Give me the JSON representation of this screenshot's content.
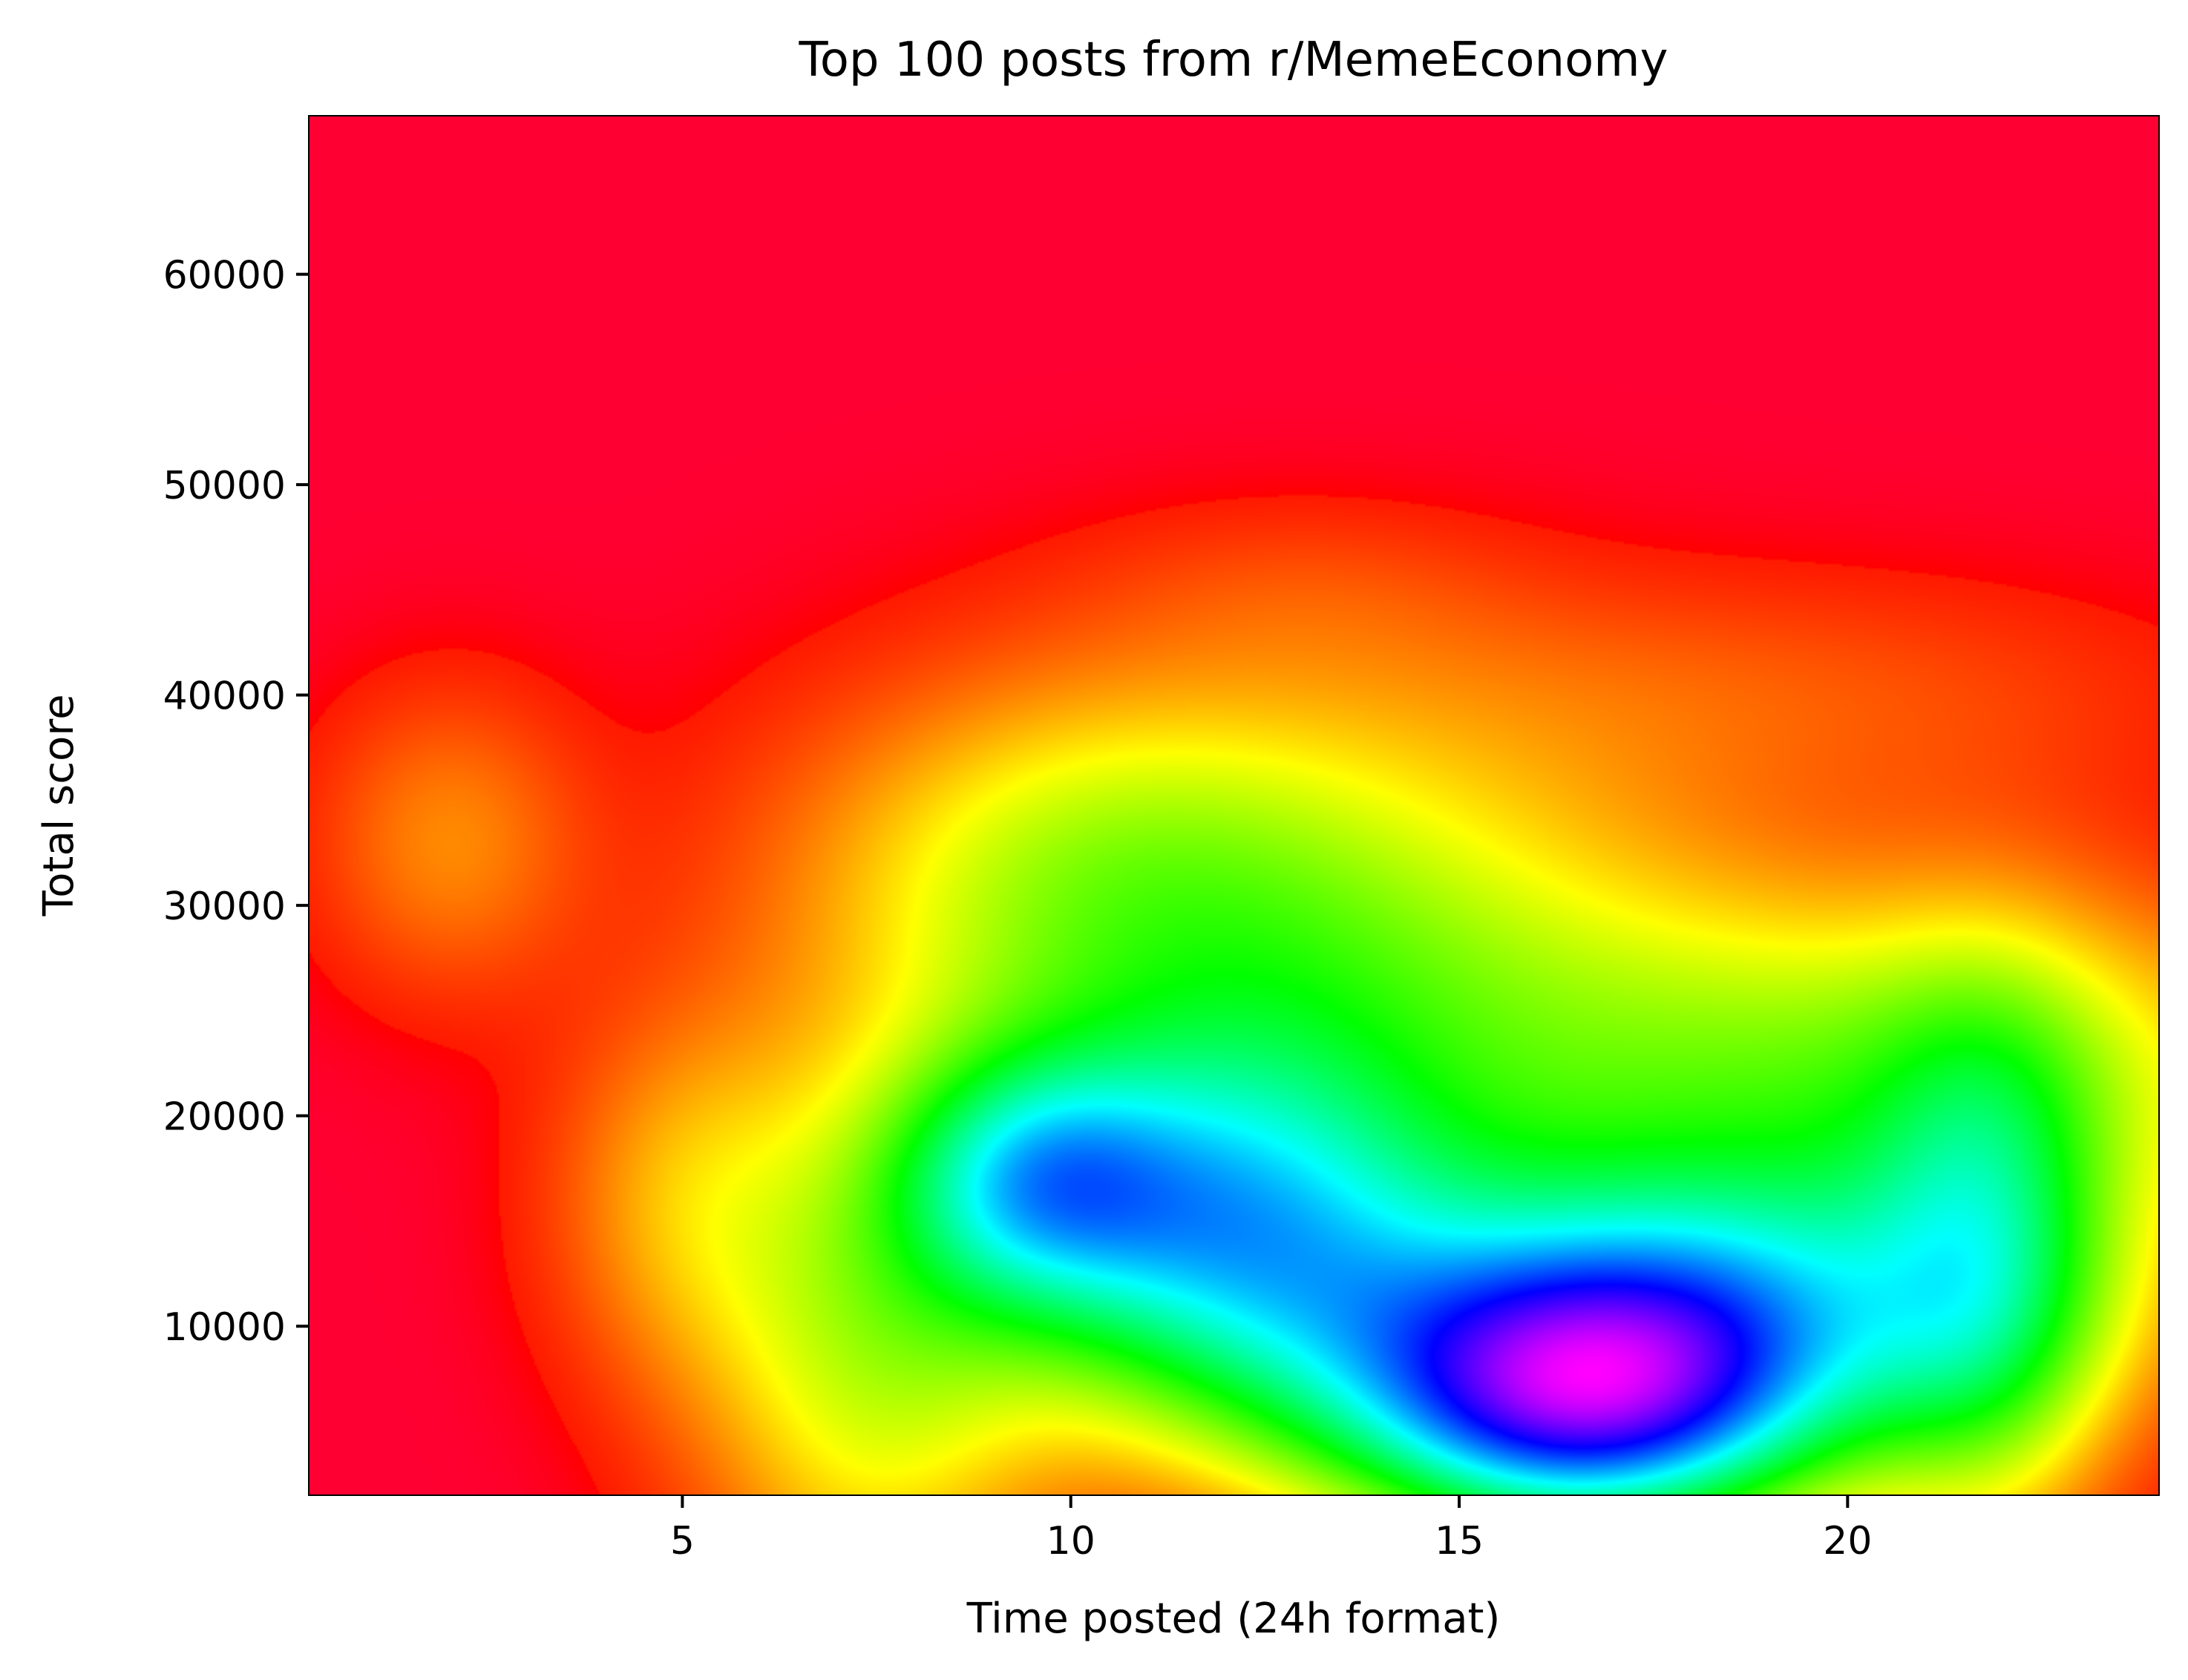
{
  "chart_data": {
    "type": "heatmap",
    "title": "Top 100 posts from r/MemeEconomy",
    "xlabel": "Time posted (24h format)",
    "ylabel": "Total score",
    "xlim": [
      0.2,
      24.0
    ],
    "ylim": [
      2000,
      67500
    ],
    "x_ticks": [
      5,
      10,
      15,
      20
    ],
    "y_ticks": [
      10000,
      20000,
      30000,
      40000,
      50000,
      60000
    ],
    "colormap": "gist_rainbow",
    "colorbar": false,
    "grid": false,
    "note_values": "relative density (0 = red/low, 1 = magenta/high)",
    "density_peaks": [
      {
        "x": 16.5,
        "y": 6000,
        "level": 1.0
      },
      {
        "x": 12.0,
        "y": 14500,
        "level": 0.74
      },
      {
        "x": 19.5,
        "y": 11000,
        "level": 0.74
      },
      {
        "x": 9.5,
        "y": 18000,
        "level": 0.55
      },
      {
        "x": 2.0,
        "y": 33000,
        "level": 0.17
      }
    ]
  }
}
